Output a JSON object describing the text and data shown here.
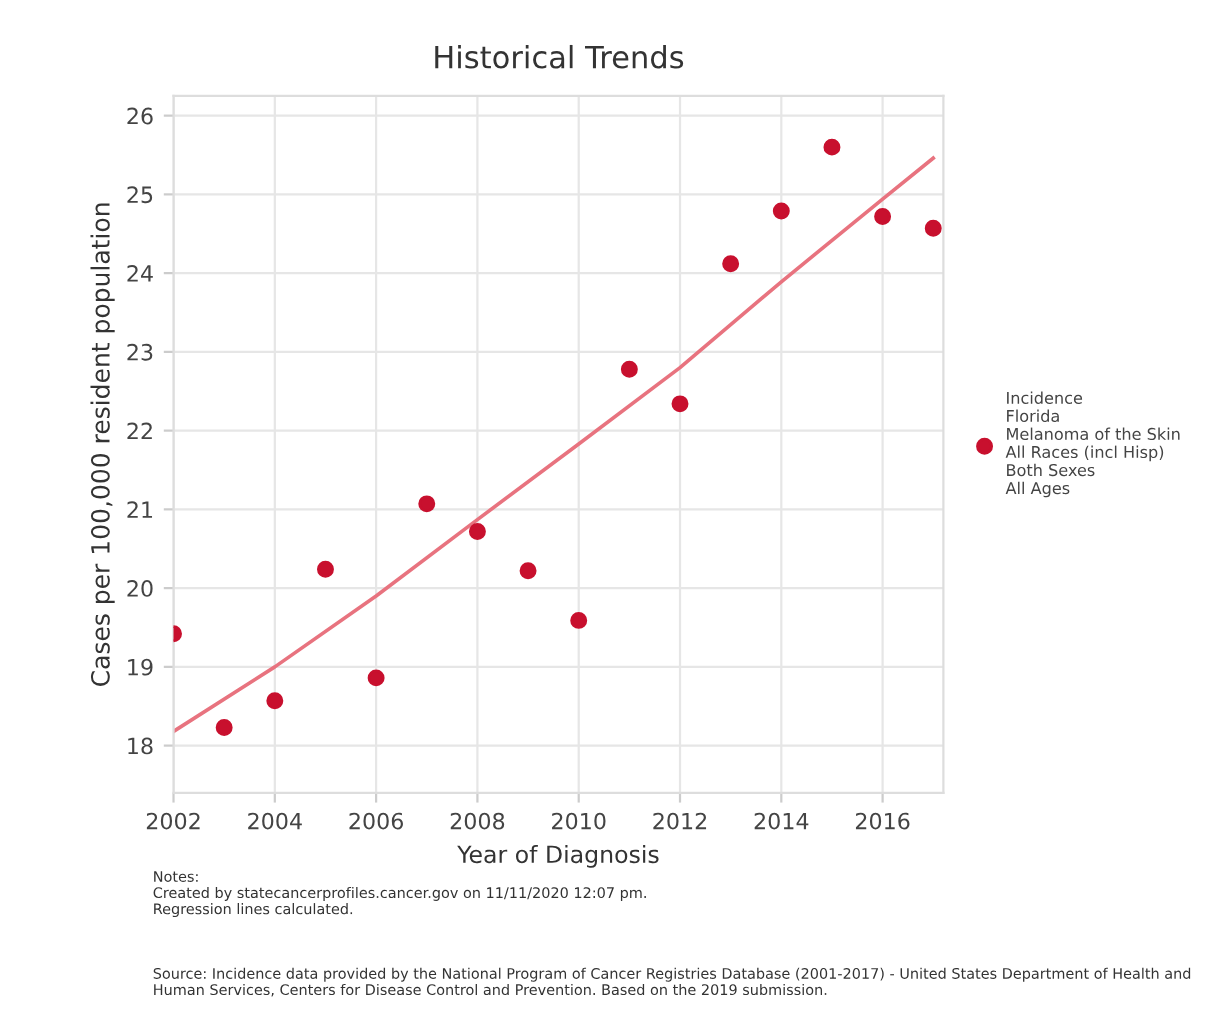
{
  "chart_data": {
    "type": "scatter",
    "title": "Historical Trends",
    "xlabel": "Year of Diagnosis",
    "ylabel": "Cases per 100,000 resident population",
    "x": [
      2002,
      2003,
      2004,
      2005,
      2006,
      2007,
      2008,
      2009,
      2010,
      2011,
      2012,
      2013,
      2014,
      2015,
      2016,
      2017
    ],
    "series": [
      {
        "name": "Incidence\nFlorida\nMelanoma of the Skin\nAll Races (incl Hisp)\nBoth Sexes\nAll Ages",
        "color": "#c8102e",
        "marker": "circle",
        "values": [
          19.42,
          18.23,
          18.57,
          20.24,
          18.86,
          21.07,
          20.72,
          20.22,
          19.59,
          22.78,
          22.34,
          24.12,
          24.79,
          25.6,
          24.72,
          24.57
        ]
      },
      {
        "type": "line",
        "color": "#e8737f",
        "line_style": "solid",
        "marker": "none",
        "x": [
          2002,
          2004,
          2006,
          2008,
          2010,
          2012,
          2014,
          2016,
          2017
        ],
        "values": [
          18.18,
          19.0,
          19.9,
          20.87,
          21.83,
          22.8,
          23.89,
          24.94,
          25.46
        ]
      }
    ],
    "xlim": [
      2002,
      2017.2
    ],
    "ylim": [
      17.4,
      26.25
    ],
    "xticks": [
      2002,
      2004,
      2006,
      2008,
      2010,
      2012,
      2014,
      2016
    ],
    "yticks": [
      18,
      19,
      20,
      21,
      22,
      23,
      24,
      25,
      26
    ],
    "grid": true,
    "legend": "right",
    "annotations": [
      "Notes:\nCreated by statecancerprofiles.cancer.gov on 11/11/2020 12:07 pm.\nRegression lines calculated.",
      "Source: Incidence data provided by the National Program of Cancer Registries Database (2001-2017) - United States Department of Health and Human Services, Centers for Disease Control and Prevention. Based on the 2019 submission."
    ]
  }
}
